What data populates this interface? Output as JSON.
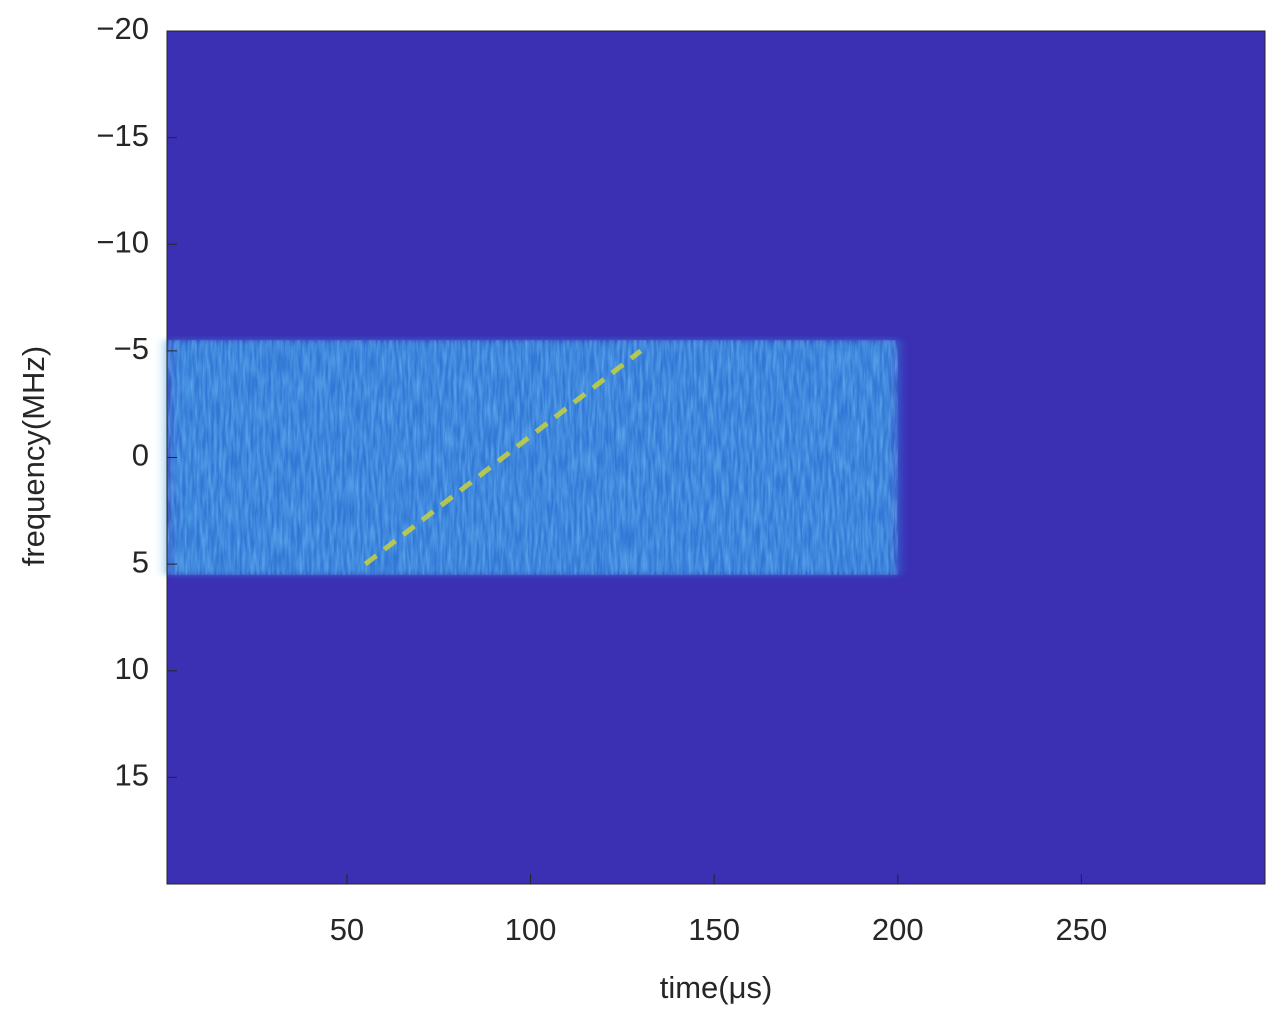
{
  "chart_data": {
    "type": "spectrogram",
    "xlabel": "time(μs)",
    "ylabel": "frequency(MHz)",
    "xlim": [
      1,
      300
    ],
    "ylim": [
      -20,
      20
    ],
    "xticks": [
      50,
      100,
      150,
      200,
      250
    ],
    "yticks": [
      {
        "value": -20,
        "label": "−20"
      },
      {
        "value": -15,
        "label": "−15"
      },
      {
        "value": -10,
        "label": "−10"
      },
      {
        "value": -5,
        "label": "−5"
      },
      0,
      5,
      10,
      15
    ],
    "background_color": "#3b2fb4",
    "signal": {
      "t": [
        1,
        200
      ],
      "f": [
        -5.5,
        5.5
      ],
      "color": "#2f8fe0"
    },
    "chirp": {
      "t": [
        55,
        130
      ],
      "f": [
        5,
        -5
      ],
      "color": "#c8d23a"
    }
  }
}
